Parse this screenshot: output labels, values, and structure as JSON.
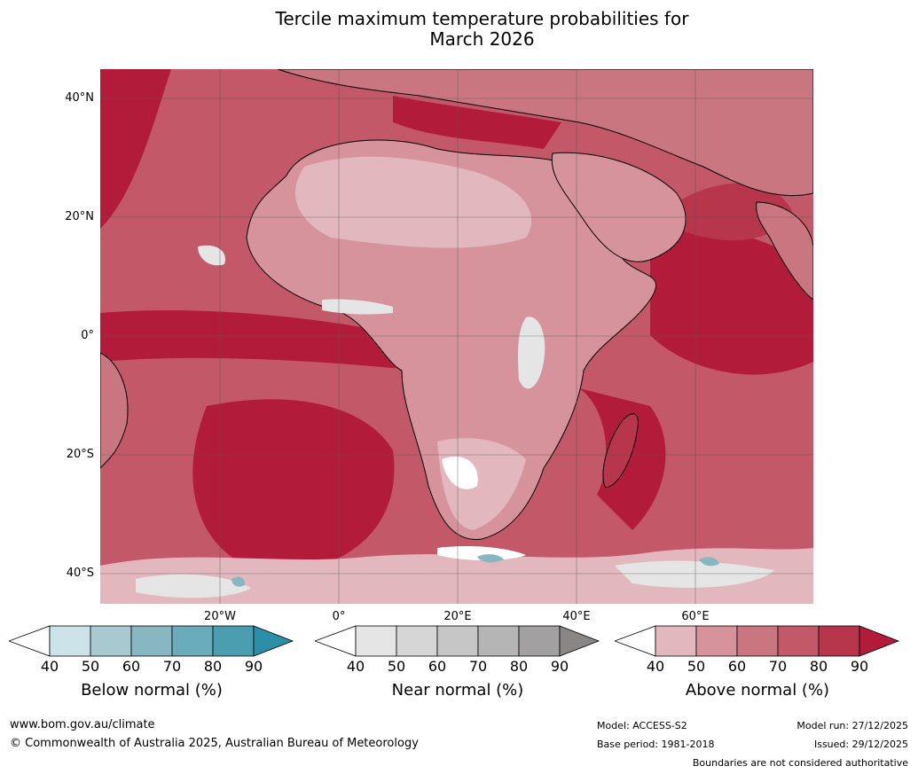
{
  "title_line1": "Tercile maximum temperature probabilities for",
  "title_line2": "March 2026",
  "latitude_labels": [
    "40°N",
    "20°N",
    "0°",
    "20°S",
    "40°S"
  ],
  "longitude_labels": [
    "20°W",
    "0°",
    "20°E",
    "40°E",
    "60°E"
  ],
  "legends": [
    {
      "name": "Below normal (%)",
      "ticks": [
        "40",
        "50",
        "60",
        "70",
        "80",
        "90"
      ],
      "colors": [
        "#ffffff",
        "#cde3ea",
        "#a8c9d0",
        "#88b7c2",
        "#6aacbb",
        "#4a9eb0",
        "#2d8ea8"
      ]
    },
    {
      "name": "Near normal (%)",
      "ticks": [
        "40",
        "50",
        "60",
        "70",
        "80",
        "90"
      ],
      "colors": [
        "#ffffff",
        "#e5e5e5",
        "#d6d6d6",
        "#c6c6c6",
        "#b5b5b5",
        "#a2a0a0",
        "#8a8686"
      ]
    },
    {
      "name": "Above normal (%)",
      "ticks": [
        "40",
        "50",
        "60",
        "70",
        "80",
        "90"
      ],
      "colors": [
        "#ffffff",
        "#e2b8be",
        "#d6939c",
        "#ca7680",
        "#c25868",
        "#b8364c",
        "#b21c3a"
      ]
    }
  ],
  "footer": {
    "website": "www.bom.gov.au/climate",
    "copyright": "© Commonwealth of Australia 2025, Australian Bureau of Meteorology",
    "model": "Model: ACCESS-S2",
    "base_period": "Base period: 1981-2018",
    "model_run": "Model run: 27/12/2025",
    "issued": "Issued: 29/12/2025",
    "disclaimer": "Boundaries are not considered authoritative"
  }
}
